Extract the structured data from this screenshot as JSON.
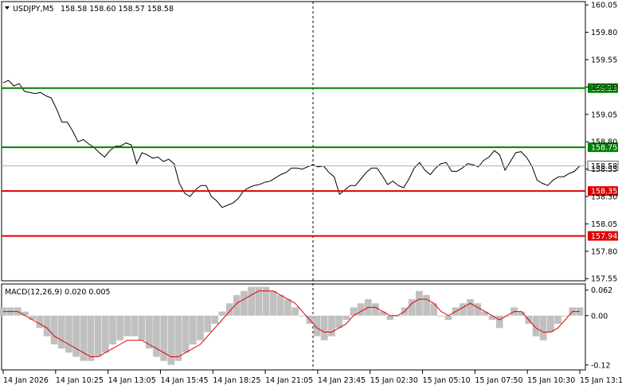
{
  "header": {
    "symbol": "USDJPY,M5",
    "ohlc": "158.58 158.60 158.57 158.58"
  },
  "macd": {
    "label": "MACD(12,26,9) 0.020 0.005",
    "yticks": [
      "0.062",
      "0.00",
      "-0.12"
    ]
  },
  "colors": {
    "price_line": "#000000",
    "green_level": "#008000",
    "red_level": "#e00000",
    "histogram": "#c0c0c0",
    "signal": "#e00000",
    "grid": "#000000"
  },
  "chart_data": [
    {
      "type": "line",
      "title": "",
      "series": [
        {
          "values": [
            159.34,
            159.36,
            159.31,
            159.33,
            159.26,
            159.25,
            159.24,
            159.25,
            159.22,
            159.2,
            159.1,
            158.98,
            158.98,
            158.9,
            158.8,
            158.82,
            158.78,
            158.75,
            158.7,
            158.66,
            158.72,
            158.76,
            158.76,
            158.79,
            158.77,
            158.6,
            158.7,
            158.68,
            158.65,
            158.66,
            158.62,
            158.64,
            158.6,
            158.42,
            158.33,
            158.3,
            158.36,
            158.4,
            158.4,
            158.3,
            158.26,
            158.2,
            158.22,
            158.24,
            158.28,
            158.35,
            158.38,
            158.4,
            158.41,
            158.43,
            158.44,
            158.47,
            158.5,
            158.52,
            158.56,
            158.56,
            158.55,
            158.57,
            158.59,
            158.57,
            158.58,
            158.52,
            158.48,
            158.32,
            158.36,
            158.4,
            158.4,
            158.46,
            158.52,
            158.56,
            158.56,
            158.49,
            158.41,
            158.44,
            158.4,
            158.38,
            158.46,
            158.56,
            158.61,
            158.54,
            158.5,
            158.56,
            158.6,
            158.61,
            158.53,
            158.53,
            158.56,
            158.6,
            158.59,
            158.57,
            158.63,
            158.66,
            158.72,
            158.68,
            158.54,
            158.62,
            158.7,
            158.71,
            158.66,
            158.58,
            158.45,
            158.42,
            158.4,
            158.45,
            158.48,
            158.48,
            158.51,
            158.53,
            158.58
          ]
        }
      ],
      "ylim": [
        157.53,
        160.08
      ],
      "yticks": [
        "160.05",
        "159.80",
        "159.55",
        "159.30",
        "159.05",
        "158.80",
        "158.55",
        "158.30",
        "158.05",
        "157.80",
        "157.55"
      ],
      "xticks": [
        "14 Jan 2026",
        "14 Jan 10:25",
        "14 Jan 13:05",
        "14 Jan 15:45",
        "14 Jan 18:25",
        "14 Jan 21:05",
        "14 Jan 23:45",
        "15 Jan 02:30",
        "15 Jan 05:10",
        "15 Jan 07:50",
        "15 Jan 10:30",
        "15 Jan 13:10"
      ],
      "levels": [
        {
          "value": 159.29,
          "label": "159.29",
          "color": "green"
        },
        {
          "value": 158.75,
          "label": "158.75",
          "color": "green"
        },
        {
          "value": 158.35,
          "label": "158.35",
          "color": "red"
        },
        {
          "value": 157.94,
          "label": "157.94",
          "color": "red"
        }
      ],
      "current_price": {
        "value": 158.58,
        "label": "158.58"
      },
      "grid": false
    },
    {
      "type": "bar",
      "title": "MACD(12,26,9)",
      "ylim": [
        -0.13,
        0.075
      ],
      "histogram": [
        0.02,
        0.02,
        0.02,
        0.01,
        -0.01,
        -0.03,
        -0.05,
        -0.07,
        -0.08,
        -0.09,
        -0.1,
        -0.11,
        -0.11,
        -0.1,
        -0.09,
        -0.07,
        -0.06,
        -0.05,
        -0.05,
        -0.06,
        -0.08,
        -0.1,
        -0.11,
        -0.12,
        -0.11,
        -0.09,
        -0.07,
        -0.06,
        -0.04,
        -0.02,
        0.01,
        0.03,
        0.05,
        0.06,
        0.07,
        0.07,
        0.07,
        0.06,
        0.05,
        0.04,
        0.02,
        0.0,
        -0.02,
        -0.05,
        -0.06,
        -0.05,
        -0.03,
        -0.01,
        0.02,
        0.03,
        0.04,
        0.03,
        0.01,
        -0.01,
        0.0,
        0.02,
        0.04,
        0.06,
        0.05,
        0.03,
        0.0,
        -0.01,
        0.02,
        0.03,
        0.04,
        0.03,
        0.01,
        -0.01,
        -0.03,
        0.0,
        0.02,
        0.01,
        -0.02,
        -0.05,
        -0.06,
        -0.04,
        -0.02,
        0.0,
        0.02,
        0.02
      ],
      "signal": [
        0.01,
        0.01,
        0.01,
        0.0,
        -0.01,
        -0.02,
        -0.03,
        -0.05,
        -0.06,
        -0.07,
        -0.08,
        -0.09,
        -0.1,
        -0.1,
        -0.09,
        -0.08,
        -0.07,
        -0.06,
        -0.06,
        -0.06,
        -0.07,
        -0.08,
        -0.09,
        -0.1,
        -0.1,
        -0.09,
        -0.08,
        -0.07,
        -0.05,
        -0.03,
        -0.01,
        0.01,
        0.03,
        0.04,
        0.05,
        0.06,
        0.06,
        0.06,
        0.05,
        0.04,
        0.03,
        0.01,
        -0.01,
        -0.03,
        -0.04,
        -0.04,
        -0.03,
        -0.02,
        0.0,
        0.01,
        0.02,
        0.02,
        0.01,
        0.0,
        0.0,
        0.01,
        0.03,
        0.04,
        0.04,
        0.03,
        0.01,
        0.0,
        0.01,
        0.02,
        0.03,
        0.02,
        0.01,
        0.0,
        -0.01,
        0.0,
        0.01,
        0.01,
        -0.01,
        -0.03,
        -0.04,
        -0.04,
        -0.03,
        -0.01,
        0.01,
        0.01
      ],
      "yticks": [
        "0.062",
        "0.00",
        "-0.12"
      ]
    }
  ]
}
